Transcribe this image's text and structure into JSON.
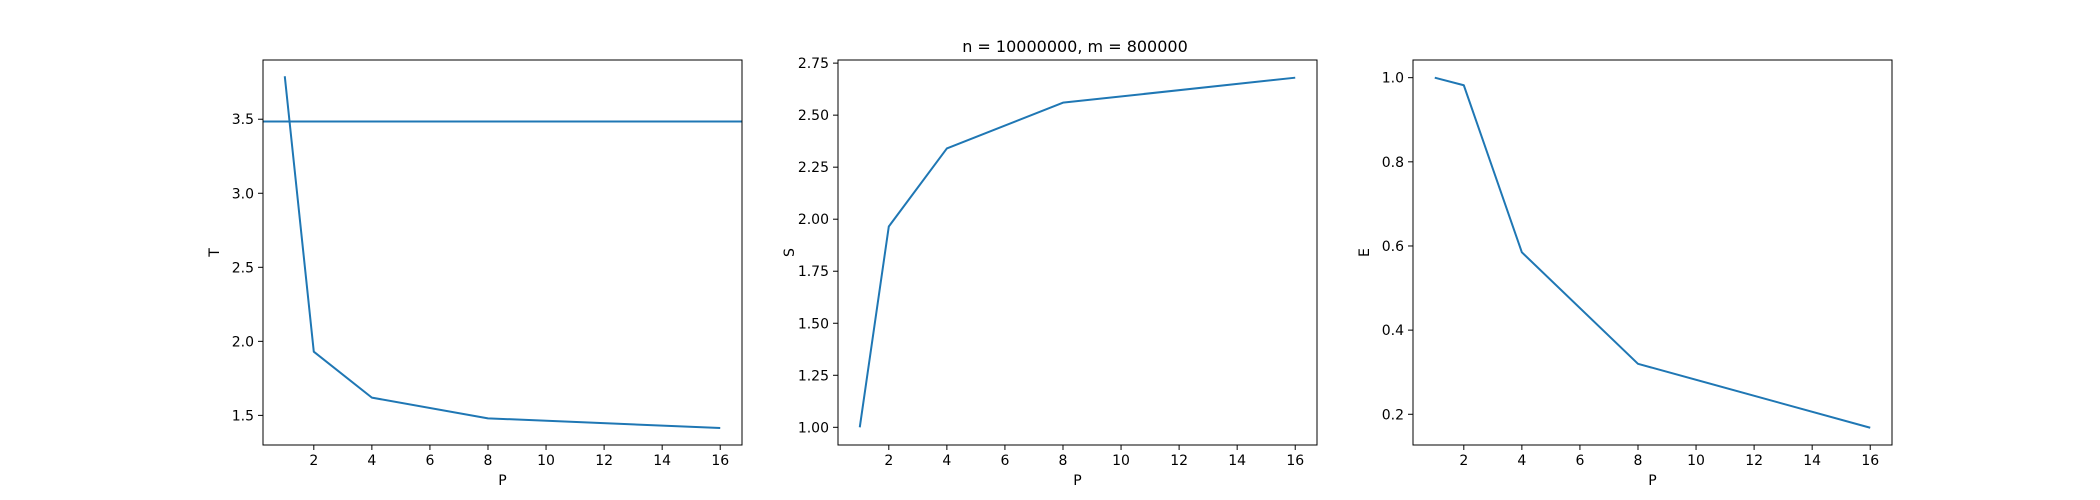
{
  "figure": {
    "title": "n = 10000000, m = 800000",
    "line_color": "#1f77b4"
  },
  "chart_data": [
    {
      "type": "line",
      "id": "time",
      "title": "",
      "xlabel": "P",
      "ylabel": "T",
      "x": [
        1,
        2,
        4,
        8,
        16
      ],
      "series": [
        {
          "values": [
            3.79,
            1.93,
            1.62,
            1.48,
            1.415
          ]
        }
      ],
      "hline": 3.485,
      "xlim": [
        0.25,
        16.75
      ],
      "ylim": [
        1.3,
        3.9
      ],
      "xticks": [
        2,
        4,
        6,
        8,
        10,
        12,
        14,
        16
      ],
      "yticks": [
        1.5,
        2.0,
        2.5,
        3.0,
        3.5
      ],
      "yticklabels": [
        "1.5",
        "2.0",
        "2.5",
        "3.0",
        "3.5"
      ],
      "grid": false
    },
    {
      "type": "line",
      "id": "speedup",
      "title": "n = 10000000, m = 800000",
      "xlabel": "P",
      "ylabel": "S",
      "x": [
        1,
        2,
        4,
        8,
        16
      ],
      "series": [
        {
          "values": [
            1.0,
            1.965,
            2.34,
            2.56,
            2.68
          ]
        }
      ],
      "xlim": [
        0.25,
        16.75
      ],
      "ylim": [
        0.915,
        2.765
      ],
      "xticks": [
        2,
        4,
        6,
        8,
        10,
        12,
        14,
        16
      ],
      "yticks": [
        1.0,
        1.25,
        1.5,
        1.75,
        2.0,
        2.25,
        2.5,
        2.75
      ],
      "yticklabels": [
        "1.00",
        "1.25",
        "1.50",
        "1.75",
        "2.00",
        "2.25",
        "2.50",
        "2.75"
      ],
      "grid": false
    },
    {
      "type": "line",
      "id": "efficiency",
      "title": "",
      "xlabel": "P",
      "ylabel": "E",
      "x": [
        1,
        2,
        4,
        8,
        16
      ],
      "series": [
        {
          "values": [
            1.0,
            0.982,
            0.585,
            0.32,
            0.168
          ]
        }
      ],
      "xlim": [
        0.25,
        16.75
      ],
      "ylim": [
        0.127,
        1.042
      ],
      "xticks": [
        2,
        4,
        6,
        8,
        10,
        12,
        14,
        16
      ],
      "yticks": [
        0.2,
        0.4,
        0.6,
        0.8,
        1.0
      ],
      "yticklabels": [
        "0.2",
        "0.4",
        "0.6",
        "0.8",
        "1.0"
      ],
      "grid": false
    }
  ]
}
